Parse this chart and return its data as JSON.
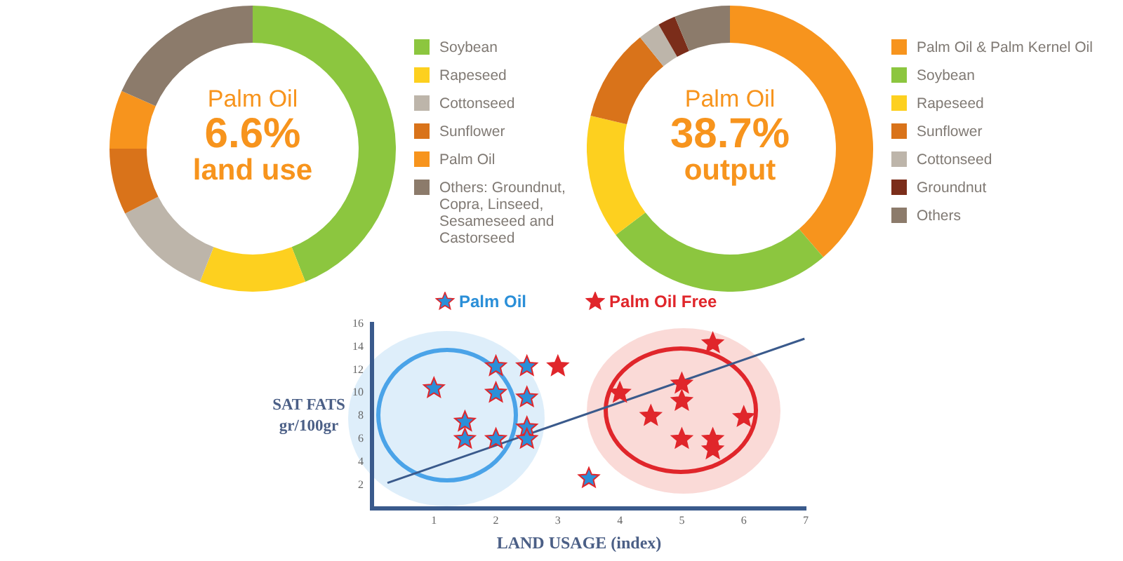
{
  "chart_data": [
    {
      "type": "donut",
      "categories": [
        "Soybean",
        "Rapeseed",
        "Cottonseed",
        "Sunflower",
        "Palm Oil",
        "Others: Groundnut, Copra, Linseed, Sesameseed and Castorseed"
      ],
      "values": [
        44,
        12,
        11.5,
        7.5,
        6.6,
        18.4
      ],
      "colors": [
        "#8cc63f",
        "#fdd01f",
        "#bdb5aa",
        "#d9731a",
        "#f7941d",
        "#8c7b6b"
      ],
      "legend": "right",
      "annotations": [
        "Palm Oil",
        "6.6%",
        "land use"
      ]
    },
    {
      "type": "donut",
      "categories": [
        "Palm Oil & Palm Kernel Oil",
        "Soybean",
        "Rapeseed",
        "Sunflower",
        "Cottonseed",
        "Groundnut",
        "Others"
      ],
      "values": [
        38.7,
        26,
        14,
        10.5,
        2.5,
        2,
        6.3
      ],
      "colors": [
        "#f7941d",
        "#8cc63f",
        "#fdd01f",
        "#d9731a",
        "#bdb5aa",
        "#7b2d1a",
        "#8c7b6b"
      ],
      "legend": "right",
      "annotations": [
        "Palm Oil",
        "38.7%",
        "output"
      ]
    },
    {
      "type": "scatter",
      "xlabel": "LAND USAGE (index)",
      "ylabel": "SAT FATS gr/100gr",
      "xlim": [
        0,
        7
      ],
      "xticks": [
        1,
        2,
        3,
        4,
        5,
        6,
        7
      ],
      "ylim": [
        0,
        16
      ],
      "yticks": [
        2,
        4,
        6,
        8,
        10,
        12,
        14,
        16
      ],
      "grid": false,
      "legend": "top",
      "marker": "star",
      "series": [
        {
          "name": "Palm Oil",
          "color": "#2b8fd8",
          "x": [
            1,
            2,
            2.5,
            2,
            2.5,
            1.5,
            1.5,
            2,
            2.5,
            2.5,
            3.5
          ],
          "values": [
            10.4,
            12.3,
            12.3,
            10,
            9.6,
            7.5,
            6,
            6,
            7,
            6,
            2.6
          ]
        },
        {
          "name": "Palm Oil Free",
          "color": "#e0262b",
          "x": [
            3,
            4,
            4.5,
            5,
            5,
            5.5,
            6,
            5,
            5.5,
            5.5
          ],
          "values": [
            12.3,
            10,
            8,
            10.8,
            9.3,
            14.3,
            7.9,
            6,
            6,
            5.1
          ]
        },
        {
          "type": "line",
          "marker": "none",
          "color": "#3a5a8c",
          "x": [
            0.25,
            6.98
          ],
          "values": [
            2.2,
            14.7
          ]
        }
      ]
    }
  ]
}
